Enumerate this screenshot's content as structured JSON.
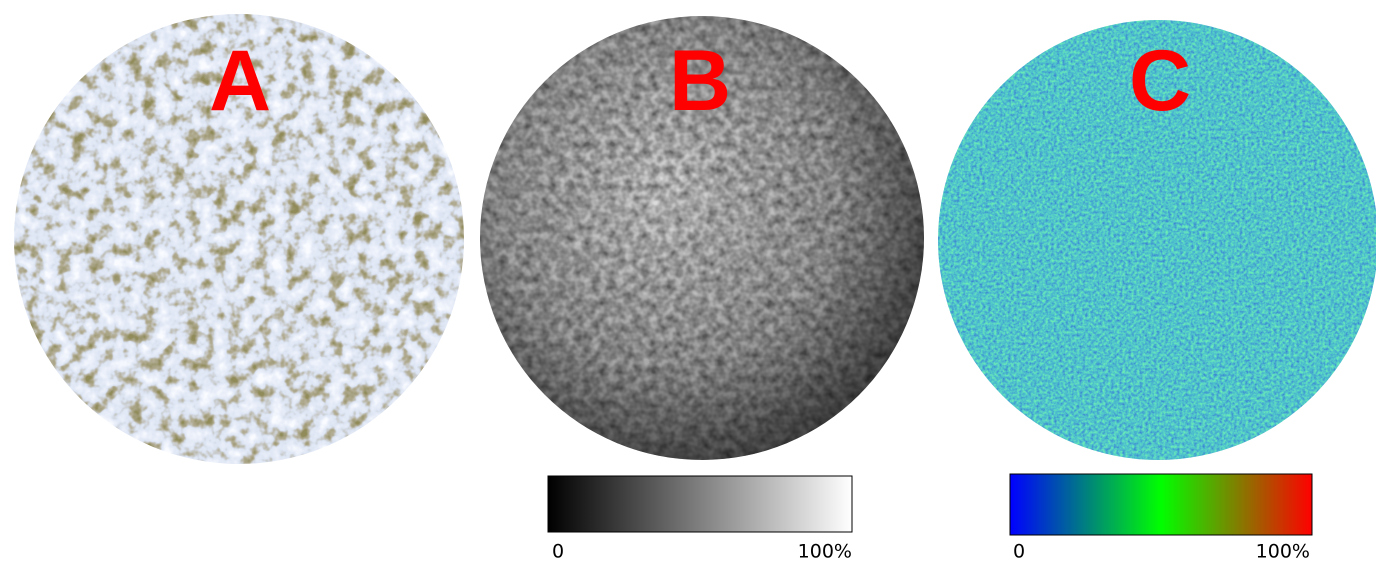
{
  "panels": [
    {
      "label": "A"
    },
    {
      "label": "B",
      "colorbar": {
        "min_label": "0",
        "max_label": "100%"
      }
    },
    {
      "label": "C",
      "colorbar": {
        "min_label": "0",
        "max_label": "100%"
      }
    }
  ]
}
